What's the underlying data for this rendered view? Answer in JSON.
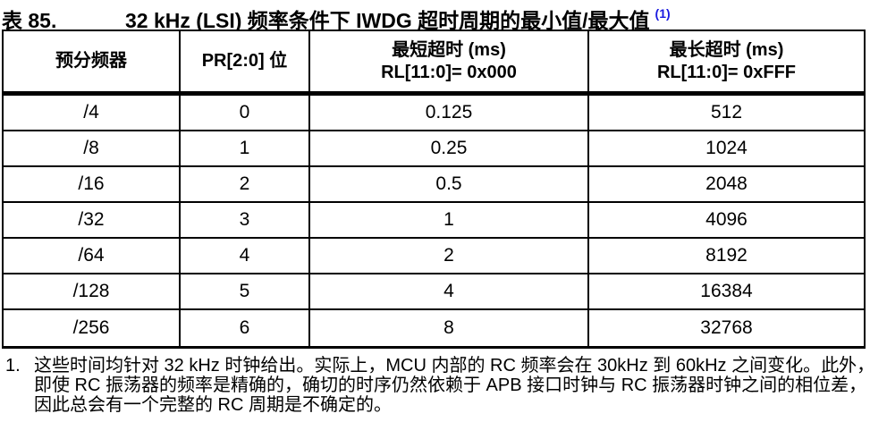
{
  "title": {
    "label": "表 85.",
    "text": "32 kHz (LSI) 频率条件下 IWDG 超时周期的最小值/最大值",
    "superscript": "(1)"
  },
  "table": {
    "headers": [
      [
        "预分频器"
      ],
      [
        "PR[2:0] 位"
      ],
      [
        "最短超时 (ms)",
        "RL[11:0]= 0x000"
      ],
      [
        "最长超时 (ms)",
        "RL[11:0]= 0xFFF"
      ]
    ],
    "rows": [
      [
        "/4",
        "0",
        "0.125",
        "512"
      ],
      [
        "/8",
        "1",
        "0.25",
        "1024"
      ],
      [
        "/16",
        "2",
        "0.5",
        "2048"
      ],
      [
        "/32",
        "3",
        "1",
        "4096"
      ],
      [
        "/64",
        "4",
        "2",
        "8192"
      ],
      [
        "/128",
        "5",
        "4",
        "16384"
      ],
      [
        "/256",
        "6",
        "8",
        "32768"
      ]
    ]
  },
  "footnote": {
    "number": "1.",
    "lines": [
      "这些时间均针对 32 kHz 时钟给出。实际上，MCU 内部的 RC 频率会在 30kHz 到 60kHz 之间变化。此外，",
      "即使 RC 振荡器的频率是精确的，确切的时序仍然依赖于 APB 接口时钟与 RC 振荡器时钟之间的相位差，",
      "因此总会有一个完整的 RC 周期是不确定的。"
    ]
  },
  "colors": {
    "link_blue": "#1a1ae0",
    "text": "#000000",
    "border": "#000000",
    "background": "#ffffff"
  }
}
